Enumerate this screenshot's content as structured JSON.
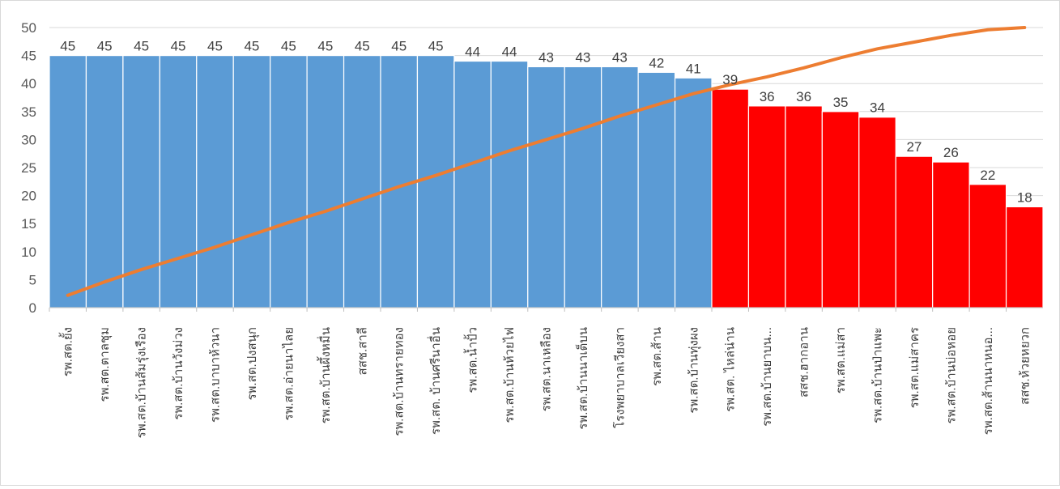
{
  "chart_data": {
    "type": "bar",
    "title": "",
    "xlabel": "",
    "ylabel": "",
    "ylim": [
      0,
      50
    ],
    "yticks": [
      0,
      5,
      10,
      15,
      20,
      25,
      30,
      35,
      40,
      45,
      50
    ],
    "grid": true,
    "legend": "none",
    "threshold_note": "bars below 40 drawn in red",
    "categories": [
      "รพ.สต.ยั้ง",
      "รพ.สต.ตาลชุม",
      "รพ.สต.บ้านส้มรุ่งเรือง",
      "รพ.สต.บ้านวังม่วง",
      "รพ.สต.บาบาห้วนา",
      "รพ.สต.ปงสนุก",
      "รพ.สต.อ่ายนาไลย",
      "รพ.สต.บ้านผึ้งหมื่น",
      "สสช.สาลี",
      "รพ.สต.บ้านทรายทอง",
      "รพ.สต. บ้านศรีนาอื่น",
      "รพ.สต.น้ำปั้ว",
      "รพ.สต.บ้านห้วยไฟ",
      "รพ.สต.นาเหลือง",
      "รพ.สต.บ้านนาเต็บน",
      "โรงพยาบาลเวียงสา",
      "รพ.สต.ส้าน",
      "รพ.สต.บ้านทุ่งผง",
      "รพ.สต. ไหล่น่าน",
      "รพ.สต.บ้านยาบน...",
      "สสช.ฮากอาน",
      "รพ.สต.แม่สา",
      "รพ.สต.บ้านป่าแพะ",
      "รพ.สต.แม่สาคร",
      "รพ.สต.บ้านบ่อหอย",
      "รพ.สต.ส้านนาหนอ...",
      "สสช.ห้วยหยวก"
    ],
    "series": [
      {
        "type": "bar",
        "values": [
          45,
          45,
          45,
          45,
          45,
          45,
          45,
          45,
          45,
          45,
          45,
          44,
          44,
          43,
          43,
          43,
          42,
          41,
          39,
          36,
          36,
          35,
          34,
          27,
          26,
          22,
          18
        ]
      },
      {
        "type": "line",
        "values": [
          2.2,
          4.6,
          6.8,
          8.8,
          10.8,
          13.0,
          15.2,
          17.2,
          19.4,
          21.6,
          23.6,
          25.8,
          28.0,
          30.0,
          32.0,
          34.2,
          36.2,
          38.2,
          39.8,
          41.2,
          42.8,
          44.6,
          46.2,
          47.4,
          48.6,
          49.6,
          50.0
        ]
      }
    ],
    "colors": {
      "bar_high": "#5B9BD5",
      "bar_low": "#FF0000",
      "line": "#ED7D31",
      "grid": "#D9D9D9",
      "axis": "#BFBFBF"
    }
  }
}
